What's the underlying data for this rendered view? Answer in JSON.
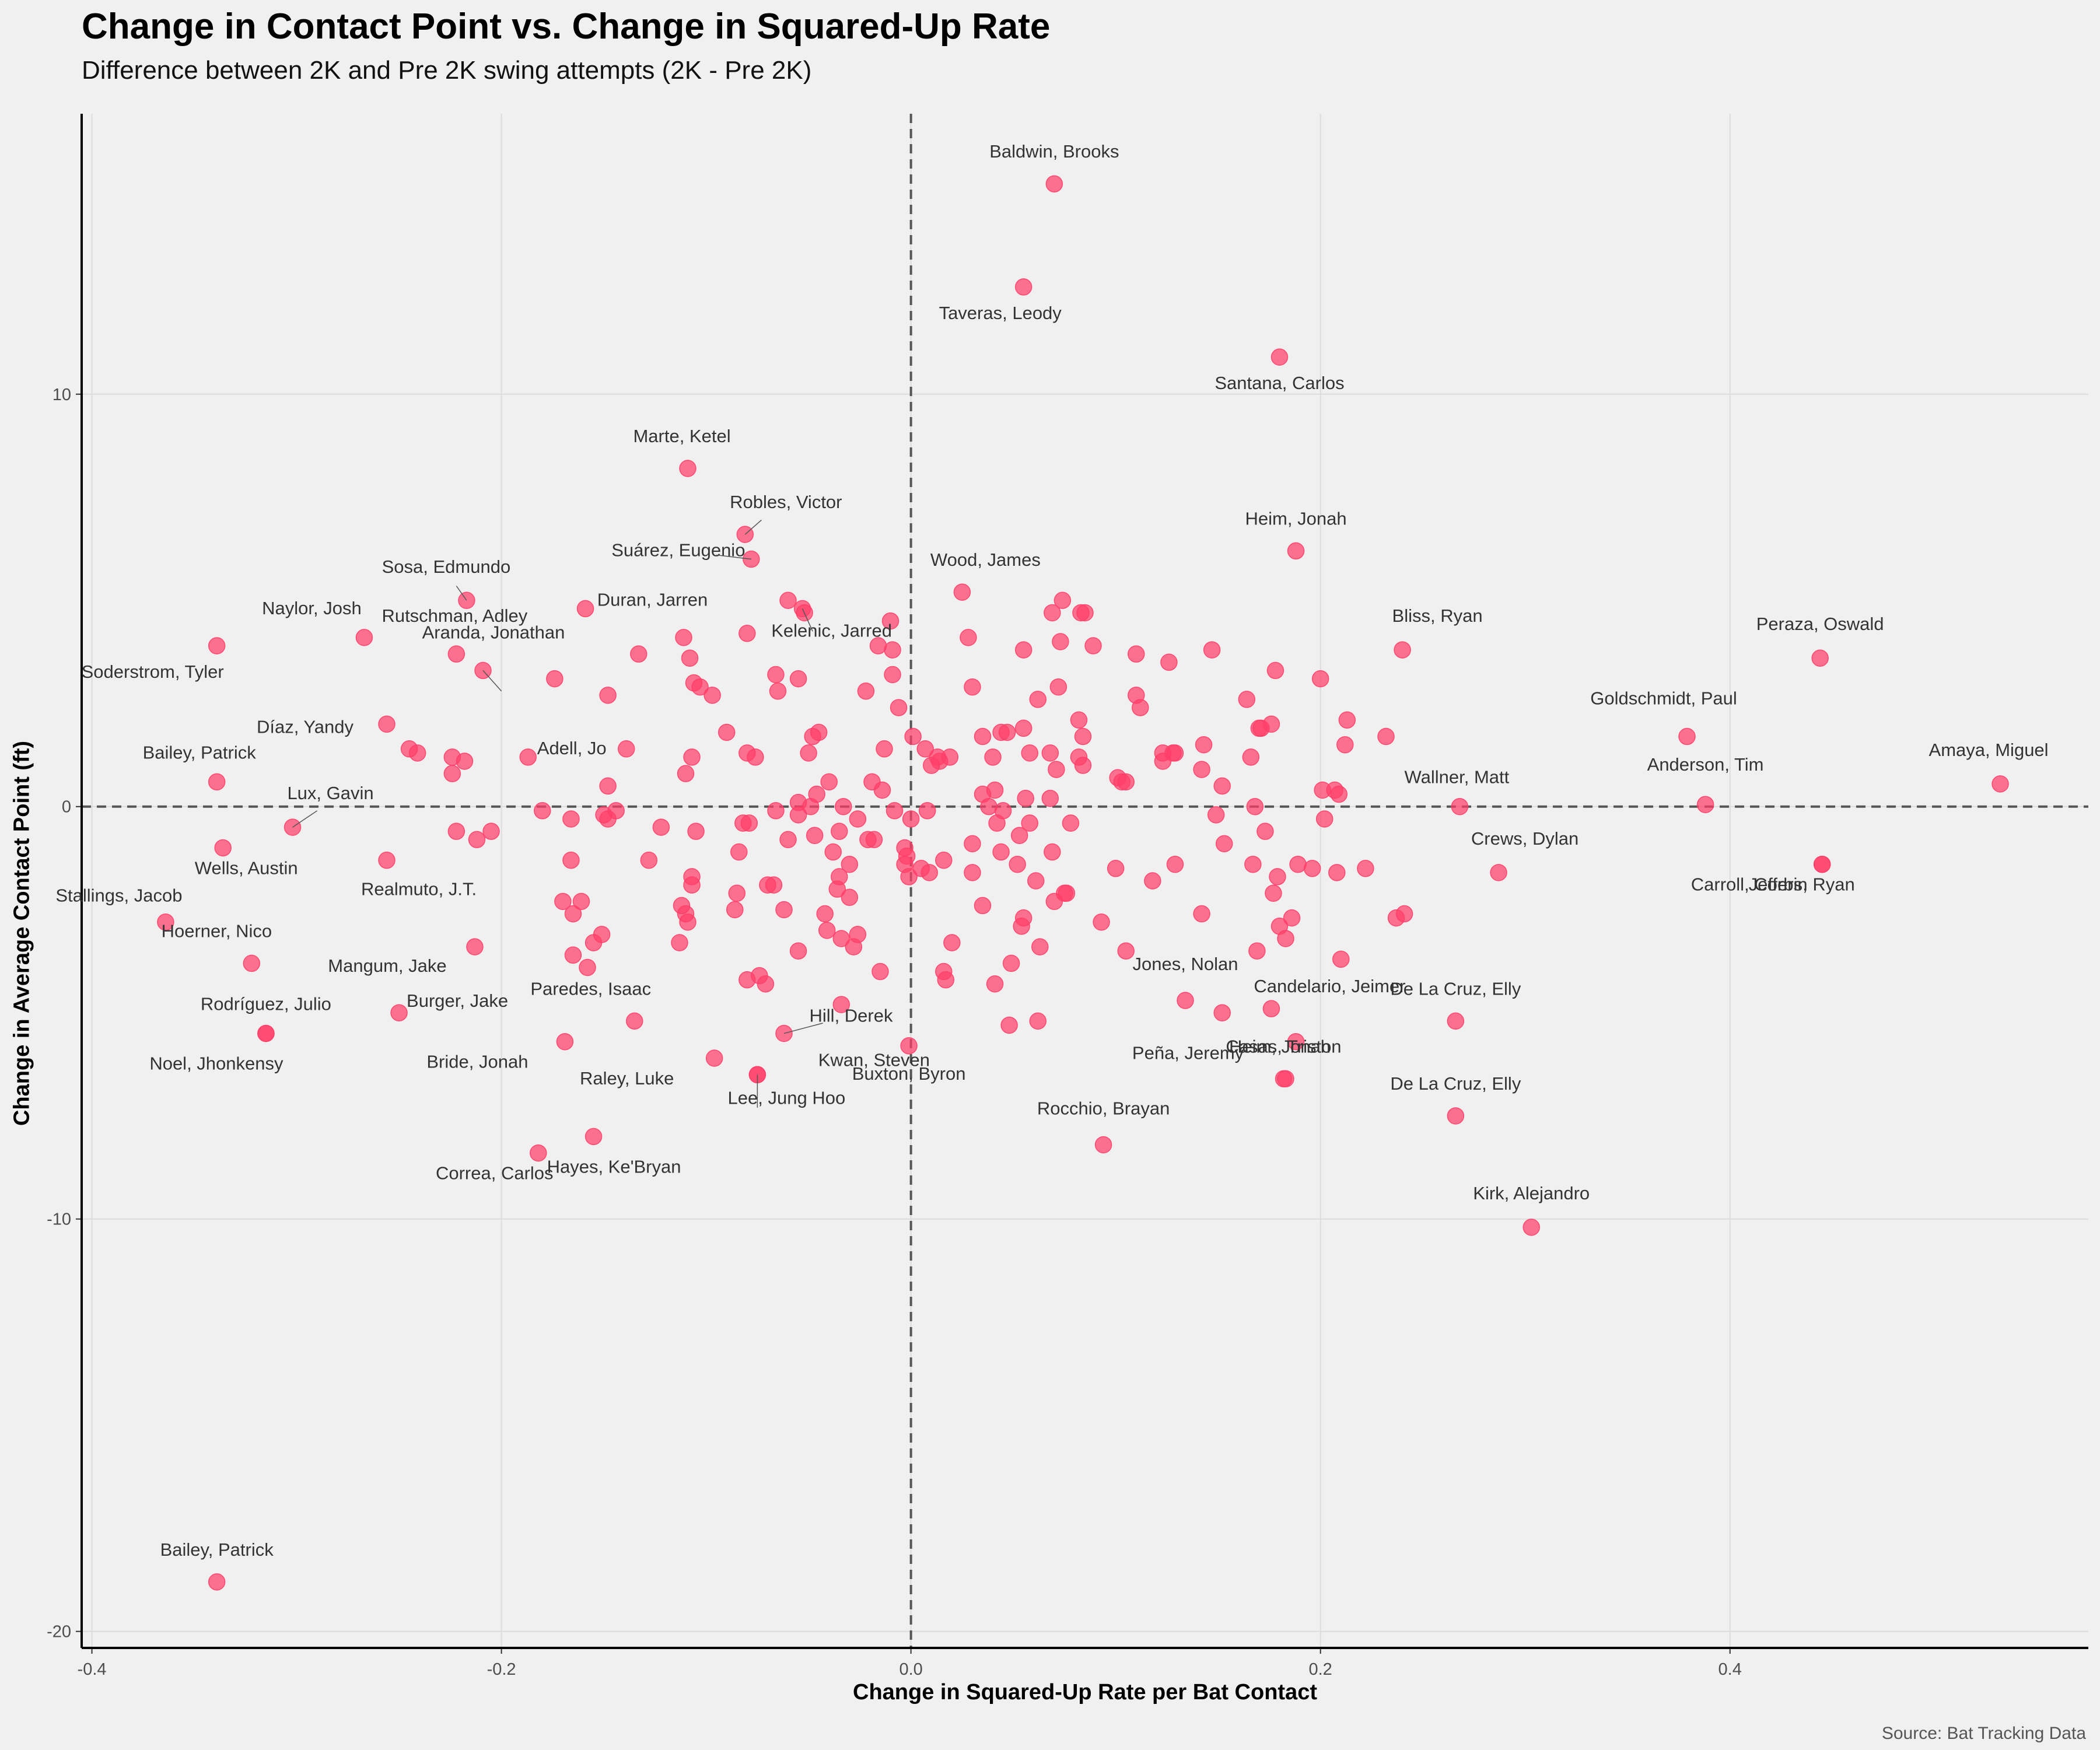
{
  "header": {
    "title": "Change in Contact Point vs. Change in Squared-Up Rate",
    "subtitle": "Difference between 2K and Pre 2K swing attempts (2K - Pre 2K)"
  },
  "footer": {
    "caption": "Source: Bat Tracking Data"
  },
  "colors": {
    "point": "#ff3e68",
    "background": "#f0f0f0",
    "grid": "#dcdcdc",
    "ref_line": "#555555"
  },
  "chart_data": {
    "type": "scatter",
    "title": "Change in Contact Point vs. Change in Squared-Up Rate",
    "xlabel": "Change in Squared-Up Rate per Bat Contact",
    "ylabel": "Change in Average Contact Point (ft)",
    "xlim": [
      -0.405,
      0.575
    ],
    "ylim": [
      -20.4,
      16.8
    ],
    "x_ticks": [
      -0.4,
      -0.2,
      0.0,
      0.2,
      0.4
    ],
    "x_tick_labels": [
      "-0.4",
      "-0.2",
      "0.0",
      "0.2",
      "0.4"
    ],
    "y_ticks": [
      10,
      0,
      -10,
      -20
    ],
    "y_tick_labels": [
      "10",
      "0",
      "-10",
      "-20"
    ],
    "reference_lines": {
      "x": 0,
      "y": 0
    },
    "labeled_points": [
      {
        "name": "Baldwin, Brooks",
        "x": 0.07,
        "y": 15.1
      },
      {
        "name": "Taveras, Leody",
        "x": 0.055,
        "y": 12.6
      },
      {
        "name": "Santana, Carlos",
        "x": 0.18,
        "y": 10.9
      },
      {
        "name": "Marte, Ketel",
        "x": -0.109,
        "y": 8.2
      },
      {
        "name": "Robles, Victor",
        "x": -0.081,
        "y": 6.6
      },
      {
        "name": "Suárez, Eugenio",
        "x": -0.078,
        "y": 6.0
      },
      {
        "name": "Heim, Jonah",
        "x": 0.188,
        "y": 6.2
      },
      {
        "name": "Wood, James",
        "x": 0.025,
        "y": 5.2
      },
      {
        "name": "Sosa, Edmundo",
        "x": -0.217,
        "y": 5.0
      },
      {
        "name": "Duran, Jarren",
        "x": -0.159,
        "y": 4.8
      },
      {
        "name": "Naylor, Josh",
        "x": -0.267,
        "y": 4.1
      },
      {
        "name": "Kelenic, Jarred",
        "x": -0.053,
        "y": 4.8
      },
      {
        "name": "Rutschman, Adley",
        "x": -0.222,
        "y": 3.7
      },
      {
        "name": "Bliss, Ryan",
        "x": 0.24,
        "y": 3.8
      },
      {
        "name": "Peraza, Oswald",
        "x": 0.444,
        "y": 3.6
      },
      {
        "name": "Soderstrom, Tyler",
        "x": -0.339,
        "y": 3.9
      },
      {
        "name": "Aranda, Jonathan",
        "x": -0.209,
        "y": 3.3
      },
      {
        "name": "Díaz, Yandy",
        "x": -0.256,
        "y": 2.0
      },
      {
        "name": "Goldschmidt, Paul",
        "x": 0.379,
        "y": 1.7
      },
      {
        "name": "Adell, Jo",
        "x": -0.187,
        "y": 1.2
      },
      {
        "name": "Bailey, Patrick",
        "x": -0.339,
        "y": 0.6
      },
      {
        "name": "Anderson, Tim",
        "x": 0.388,
        "y": 0.05
      },
      {
        "name": "Amaya, Miguel",
        "x": 0.532,
        "y": 0.55
      },
      {
        "name": "Wallner, Matt",
        "x": 0.268,
        "y": 0.0
      },
      {
        "name": "Lux, Gavin",
        "x": -0.302,
        "y": -0.5
      },
      {
        "name": "Wells, Austin",
        "x": -0.336,
        "y": -1.0
      },
      {
        "name": "Carroll, Corbin",
        "x": 0.445,
        "y": -1.4
      },
      {
        "name": "Crews, Dylan",
        "x": 0.287,
        "y": -1.6
      },
      {
        "name": "Realmuto, J.T.",
        "x": -0.256,
        "y": -1.3
      },
      {
        "name": "Jeffers, Ryan",
        "x": 0.445,
        "y": -1.4
      },
      {
        "name": "Stallings, Jacob",
        "x": -0.364,
        "y": -2.8
      },
      {
        "name": "Mangum, Jake",
        "x": -0.213,
        "y": -3.4
      },
      {
        "name": "Hoerner, Nico",
        "x": -0.322,
        "y": -3.8
      },
      {
        "name": "Jones, Nolan",
        "x": 0.134,
        "y": -4.7
      },
      {
        "name": "Candelario, Jeimer",
        "x": 0.176,
        "y": -4.9
      },
      {
        "name": "Burger, Jake",
        "x": -0.25,
        "y": -5.0
      },
      {
        "name": "Paredes, Isaac",
        "x": -0.135,
        "y": -5.2
      },
      {
        "name": "De La Cruz, Elly",
        "x": 0.266,
        "y": -5.2
      },
      {
        "name": "Rodríguez, Julio",
        "x": -0.315,
        "y": -5.5
      },
      {
        "name": "Hill, Derek",
        "x": -0.062,
        "y": -5.5
      },
      {
        "name": "Peña, Jeremy",
        "x": 0.188,
        "y": -5.7
      },
      {
        "name": "Buxton, Byron",
        "x": -0.001,
        "y": -5.8
      },
      {
        "name": "Bride, Jonah",
        "x": -0.169,
        "y": -5.7
      },
      {
        "name": "Raley, Luke",
        "x": -0.096,
        "y": -6.1
      },
      {
        "name": "Noel, Jhonkensy",
        "x": -0.315,
        "y": -5.5
      },
      {
        "name": "Heim, Jonah",
        "x": 0.183,
        "y": -6.6
      },
      {
        "name": "Kwan, Steven",
        "x": -0.075,
        "y": -6.5
      },
      {
        "name": "Casas, Triston",
        "x": 0.182,
        "y": -6.6
      },
      {
        "name": "Hayes, Ke'Bryan",
        "x": -0.155,
        "y": -8.0
      },
      {
        "name": "Lee, Jung Hoo",
        "x": -0.075,
        "y": -6.5
      },
      {
        "name": "De La Cruz, Elly",
        "x": 0.266,
        "y": -7.5
      },
      {
        "name": "Correa, Carlos",
        "x": -0.182,
        "y": -8.4
      },
      {
        "name": "Rocchio, Brayan",
        "x": 0.094,
        "y": -8.2
      },
      {
        "name": "Kirk, Alejandro",
        "x": 0.303,
        "y": -10.2
      },
      {
        "name": "Bailey, Patrick",
        "x": -0.339,
        "y": -18.8
      }
    ],
    "points": [
      [
        -0.106,
        3.0
      ],
      [
        -0.103,
        2.9
      ],
      [
        -0.097,
        2.7
      ],
      [
        -0.108,
        3.6
      ],
      [
        -0.111,
        4.1
      ],
      [
        -0.133,
        3.7
      ],
      [
        -0.148,
        2.7
      ],
      [
        -0.174,
        3.1
      ],
      [
        -0.09,
        1.8
      ],
      [
        -0.08,
        1.3
      ],
      [
        -0.076,
        1.2
      ],
      [
        -0.107,
        1.2
      ],
      [
        -0.11,
        0.8
      ],
      [
        -0.139,
        1.4
      ],
      [
        -0.148,
        0.5
      ],
      [
        -0.144,
        -0.1
      ],
      [
        -0.15,
        -0.2
      ],
      [
        -0.148,
        -0.3
      ],
      [
        -0.122,
        -0.5
      ],
      [
        -0.105,
        -0.6
      ],
      [
        -0.084,
        -1.1
      ],
      [
        -0.07,
        -1.9
      ],
      [
        -0.079,
        -0.4
      ],
      [
        -0.082,
        -0.4
      ],
      [
        -0.066,
        -0.1
      ],
      [
        -0.06,
        -0.8
      ],
      [
        -0.055,
        -0.2
      ],
      [
        -0.055,
        0.1
      ],
      [
        -0.049,
        0.0
      ],
      [
        -0.046,
        0.3
      ],
      [
        -0.04,
        0.6
      ],
      [
        -0.033,
        0.0
      ],
      [
        -0.035,
        -0.6
      ],
      [
        -0.047,
        -0.7
      ],
      [
        -0.026,
        -0.3
      ],
      [
        -0.021,
        -0.8
      ],
      [
        -0.018,
        -0.8
      ],
      [
        -0.035,
        -1.7
      ],
      [
        -0.03,
        -1.4
      ],
      [
        -0.03,
        -2.2
      ],
      [
        -0.036,
        -2.0
      ],
      [
        -0.042,
        -2.6
      ],
      [
        -0.041,
        -3.0
      ],
      [
        -0.034,
        -3.2
      ],
      [
        -0.028,
        -3.4
      ],
      [
        -0.026,
        -3.1
      ],
      [
        -0.055,
        -3.5
      ],
      [
        -0.062,
        -2.5
      ],
      [
        -0.067,
        -1.9
      ],
      [
        -0.085,
        -2.1
      ],
      [
        -0.086,
        -2.5
      ],
      [
        -0.107,
        -1.9
      ],
      [
        -0.107,
        -1.7
      ],
      [
        -0.11,
        -2.6
      ],
      [
        -0.109,
        -2.8
      ],
      [
        -0.112,
        -2.4
      ],
      [
        -0.113,
        -3.3
      ],
      [
        -0.128,
        -1.3
      ],
      [
        -0.151,
        -3.1
      ],
      [
        -0.155,
        -3.3
      ],
      [
        -0.165,
        -2.6
      ],
      [
        -0.161,
        -2.3
      ],
      [
        -0.17,
        -2.3
      ],
      [
        -0.166,
        -1.3
      ],
      [
        -0.166,
        -0.3
      ],
      [
        -0.18,
        -0.1
      ],
      [
        -0.205,
        -0.6
      ],
      [
        -0.212,
        -0.8
      ],
      [
        -0.222,
        -0.6
      ],
      [
        -0.224,
        0.8
      ],
      [
        -0.224,
        1.2
      ],
      [
        -0.218,
        1.1
      ],
      [
        -0.245,
        1.4
      ],
      [
        -0.241,
        1.3
      ],
      [
        -0.158,
        -3.9
      ],
      [
        -0.165,
        -3.6
      ],
      [
        -0.08,
        -4.2
      ],
      [
        -0.074,
        -4.1
      ],
      [
        -0.071,
        -4.3
      ],
      [
        -0.034,
        -4.8
      ],
      [
        -0.015,
        -4.0
      ],
      [
        -0.055,
        3.1
      ],
      [
        -0.066,
        3.2
      ],
      [
        -0.065,
        2.8
      ],
      [
        -0.05,
        1.3
      ],
      [
        -0.048,
        1.7
      ],
      [
        -0.045,
        1.8
      ],
      [
        -0.022,
        2.8
      ],
      [
        -0.013,
        1.4
      ],
      [
        -0.014,
        0.4
      ],
      [
        -0.008,
        -0.1
      ],
      [
        -0.019,
        0.6
      ],
      [
        -0.003,
        -1.0
      ],
      [
        -0.003,
        -1.4
      ],
      [
        -0.002,
        -1.2
      ],
      [
        -0.001,
        -1.7
      ],
      [
        0.0,
        -0.3
      ],
      [
        0.001,
        1.7
      ],
      [
        -0.006,
        2.4
      ],
      [
        -0.009,
        3.2
      ],
      [
        -0.009,
        3.8
      ],
      [
        -0.01,
        4.5
      ],
      [
        -0.016,
        3.9
      ],
      [
        -0.06,
        5.0
      ],
      [
        -0.052,
        4.7
      ],
      [
        -0.08,
        4.2
      ],
      [
        0.007,
        1.4
      ],
      [
        0.01,
        1.0
      ],
      [
        0.013,
        1.2
      ],
      [
        0.019,
        1.2
      ],
      [
        0.014,
        1.1
      ],
      [
        0.008,
        -0.1
      ],
      [
        0.005,
        -1.5
      ],
      [
        0.009,
        -1.6
      ],
      [
        0.016,
        -1.3
      ],
      [
        0.02,
        -3.3
      ],
      [
        0.016,
        -4.0
      ],
      [
        0.017,
        -4.2
      ],
      [
        0.028,
        4.1
      ],
      [
        0.03,
        2.9
      ],
      [
        0.035,
        1.7
      ],
      [
        0.04,
        1.2
      ],
      [
        0.035,
        0.3
      ],
      [
        0.038,
        0.0
      ],
      [
        0.041,
        0.4
      ],
      [
        0.042,
        -0.4
      ],
      [
        0.044,
        1.8
      ],
      [
        0.047,
        1.8
      ],
      [
        0.045,
        -0.1
      ],
      [
        0.055,
        1.9
      ],
      [
        0.058,
        1.3
      ],
      [
        0.056,
        0.2
      ],
      [
        0.058,
        -0.4
      ],
      [
        0.053,
        -0.7
      ],
      [
        0.052,
        -1.4
      ],
      [
        0.061,
        -1.8
      ],
      [
        0.054,
        -2.9
      ],
      [
        0.055,
        -2.7
      ],
      [
        0.044,
        -1.1
      ],
      [
        0.035,
        -2.4
      ],
      [
        0.03,
        -1.6
      ],
      [
        0.03,
        -0.9
      ],
      [
        0.041,
        -4.3
      ],
      [
        0.049,
        -3.8
      ],
      [
        0.055,
        3.8
      ],
      [
        0.062,
        2.6
      ],
      [
        0.068,
        1.3
      ],
      [
        0.068,
        0.2
      ],
      [
        0.071,
        0.9
      ],
      [
        0.073,
        4.0
      ],
      [
        0.074,
        5.0
      ],
      [
        0.069,
        -1.1
      ],
      [
        0.07,
        -2.3
      ],
      [
        0.075,
        -2.1
      ],
      [
        0.076,
        -2.1
      ],
      [
        0.078,
        -0.4
      ],
      [
        0.082,
        2.1
      ],
      [
        0.082,
        1.2
      ],
      [
        0.084,
        1.7
      ],
      [
        0.085,
        4.7
      ],
      [
        0.083,
        4.7
      ],
      [
        0.084,
        1.0
      ],
      [
        0.089,
        3.9
      ],
      [
        0.093,
        -2.8
      ],
      [
        0.1,
        -1.5
      ],
      [
        0.101,
        0.7
      ],
      [
        0.103,
        0.6
      ],
      [
        0.105,
        0.6
      ],
      [
        0.105,
        -3.5
      ],
      [
        0.11,
        3.7
      ],
      [
        0.11,
        2.7
      ],
      [
        0.112,
        2.4
      ],
      [
        0.118,
        -1.8
      ],
      [
        0.123,
        1.1
      ],
      [
        0.123,
        1.3
      ],
      [
        0.126,
        3.5
      ],
      [
        0.128,
        1.3
      ],
      [
        0.129,
        1.3
      ],
      [
        0.129,
        -1.4
      ],
      [
        0.142,
        0.9
      ],
      [
        0.143,
        1.5
      ],
      [
        0.142,
        -2.6
      ],
      [
        0.147,
        3.8
      ],
      [
        0.149,
        -0.2
      ],
      [
        0.152,
        0.5
      ],
      [
        0.153,
        -0.9
      ],
      [
        0.152,
        -5.0
      ],
      [
        0.164,
        2.6
      ],
      [
        0.166,
        1.2
      ],
      [
        0.167,
        -1.4
      ],
      [
        0.168,
        0.0
      ],
      [
        0.17,
        1.9
      ],
      [
        0.171,
        1.9
      ],
      [
        0.169,
        -3.5
      ],
      [
        0.173,
        -0.6
      ],
      [
        0.176,
        2.0
      ],
      [
        0.177,
        -2.1
      ],
      [
        0.178,
        3.3
      ],
      [
        0.179,
        -1.7
      ],
      [
        0.18,
        -2.9
      ],
      [
        0.183,
        -3.2
      ],
      [
        0.186,
        -2.7
      ],
      [
        0.189,
        -1.4
      ],
      [
        0.196,
        -1.5
      ],
      [
        0.2,
        3.1
      ],
      [
        0.201,
        0.4
      ],
      [
        0.202,
        -0.3
      ],
      [
        0.207,
        0.4
      ],
      [
        0.209,
        0.3
      ],
      [
        0.208,
        -1.6
      ],
      [
        0.21,
        -3.7
      ],
      [
        0.213,
        2.1
      ],
      [
        0.212,
        1.5
      ],
      [
        0.222,
        -1.5
      ],
      [
        0.232,
        1.7
      ],
      [
        0.237,
        -2.7
      ],
      [
        0.241,
        -2.6
      ],
      [
        0.069,
        4.7
      ],
      [
        0.072,
        2.9
      ],
      [
        0.062,
        -5.2
      ],
      [
        0.063,
        -3.4
      ],
      [
        0.048,
        -5.3
      ],
      [
        -0.038,
        -1.1
      ]
    ]
  }
}
